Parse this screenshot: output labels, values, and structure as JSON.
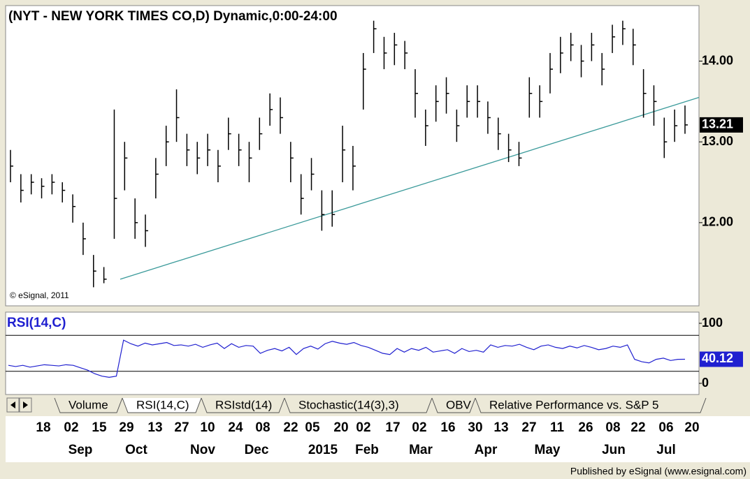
{
  "chart_data": {
    "type": "ohlc",
    "title": "(NYT - NEW YORK TIMES CO,D) Dynamic,0:00-24:00",
    "copyright": "© eSignal, 2011",
    "color": "#000000",
    "ylim": [
      10.97,
      14.67
    ],
    "yticks": [
      {
        "value": 12,
        "label": "12.00"
      },
      {
        "value": 13,
        "label": "13.00"
      },
      {
        "value": 14,
        "label": "14.00"
      }
    ],
    "closes": [
      12.7,
      12.4,
      12.5,
      12.45,
      12.5,
      12.4,
      12.2,
      11.8,
      11.4,
      11.3,
      12.3,
      12.8,
      12.0,
      11.9,
      12.6,
      13.0,
      13.3,
      12.9,
      12.8,
      12.9,
      12.7,
      13.1,
      12.9,
      12.8,
      13.1,
      13.4,
      13.3,
      12.8,
      12.3,
      12.6,
      12.1,
      12.1,
      12.9,
      12.7,
      13.9,
      14.4,
      14.1,
      14.2,
      14.1,
      13.6,
      13.2,
      13.5,
      13.6,
      13.2,
      13.5,
      13.5,
      13.3,
      13.1,
      12.9,
      12.8,
      13.6,
      13.5,
      13.9,
      14.1,
      14.2,
      14.0,
      14.2,
      13.9,
      14.3,
      14.4,
      14.2,
      13.6,
      13.5,
      13.0,
      13.2,
      13.21
    ],
    "highs": [
      12.9,
      12.6,
      12.6,
      12.55,
      12.6,
      12.5,
      12.35,
      12.0,
      11.6,
      11.45,
      13.4,
      13.0,
      12.3,
      12.1,
      12.8,
      13.2,
      13.65,
      13.1,
      13.0,
      13.1,
      12.9,
      13.3,
      13.1,
      13.0,
      13.3,
      13.6,
      13.55,
      13.0,
      12.6,
      12.8,
      12.4,
      12.4,
      13.2,
      12.95,
      14.1,
      14.5,
      14.3,
      14.35,
      14.25,
      13.9,
      13.4,
      13.7,
      13.8,
      13.4,
      13.7,
      13.7,
      13.5,
      13.3,
      13.1,
      13.0,
      13.8,
      13.7,
      14.1,
      14.3,
      14.35,
      14.2,
      14.35,
      14.1,
      14.45,
      14.5,
      14.4,
      13.9,
      13.7,
      13.3,
      13.4,
      13.45
    ],
    "lows": [
      12.5,
      12.25,
      12.35,
      12.3,
      12.35,
      12.25,
      12.0,
      11.6,
      11.2,
      11.25,
      11.8,
      12.4,
      11.8,
      11.7,
      12.3,
      12.7,
      13.0,
      12.7,
      12.6,
      12.7,
      12.5,
      12.9,
      12.7,
      12.5,
      12.9,
      13.2,
      13.1,
      12.5,
      12.1,
      12.4,
      11.9,
      11.95,
      12.5,
      12.4,
      13.4,
      14.1,
      13.9,
      13.95,
      13.9,
      13.3,
      12.95,
      13.25,
      13.35,
      13.0,
      13.3,
      13.3,
      13.1,
      12.9,
      12.75,
      12.7,
      13.3,
      13.3,
      13.6,
      13.85,
      14.0,
      13.8,
      14.0,
      13.7,
      14.1,
      14.2,
      13.95,
      13.3,
      13.2,
      12.8,
      13.0,
      13.1
    ],
    "trendline": {
      "color": "#3a9a9a",
      "values": [
        11.3,
        13.55
      ]
    },
    "rsi": {
      "label": "RSI(14,C)",
      "color": "#2020d0",
      "ylim": [
        0,
        100
      ],
      "yticks": [
        0,
        100
      ],
      "levels": [
        80,
        20
      ],
      "values": [
        30,
        28,
        30,
        27,
        29,
        31,
        30,
        29,
        31,
        30,
        26,
        22,
        16,
        12,
        10,
        12,
        72,
        66,
        62,
        67,
        64,
        66,
        68,
        63,
        64,
        62,
        65,
        60,
        64,
        67,
        58,
        66,
        60,
        63,
        62,
        50,
        55,
        58,
        54,
        60,
        48,
        58,
        62,
        57,
        66,
        70,
        67,
        65,
        68,
        63,
        60,
        55,
        50,
        48,
        58,
        52,
        58,
        55,
        60,
        52,
        54,
        56,
        50,
        58,
        53,
        55,
        52,
        64,
        60,
        63,
        62,
        65,
        60,
        56,
        62,
        64,
        60,
        58,
        62,
        59,
        63,
        60,
        56,
        58,
        62,
        60,
        64,
        40,
        36,
        34,
        40,
        42,
        38,
        40,
        40.12
      ]
    },
    "tabs": [
      "Volume",
      "RSI(14,C)",
      "RSIstd(14)",
      "Stochastic(14(3),3)",
      "OBV",
      "Relative Performance vs. S&P 5"
    ],
    "day_labels": [
      "18",
      "02",
      "15",
      "29",
      "13",
      "27",
      "10",
      "24",
      "08",
      "22",
      "05",
      "20",
      "02",
      "17",
      "02",
      "16",
      "30",
      "13",
      "27",
      "11",
      "26",
      "08",
      "22",
      "06",
      "20"
    ],
    "month_labels": [
      "Sep",
      "Oct",
      "Nov",
      "Dec",
      "2015",
      "Feb",
      "Mar",
      "Apr",
      "May",
      "Jun",
      "Jul"
    ],
    "footer": "Published by eSignal (www.esignal.com)"
  }
}
